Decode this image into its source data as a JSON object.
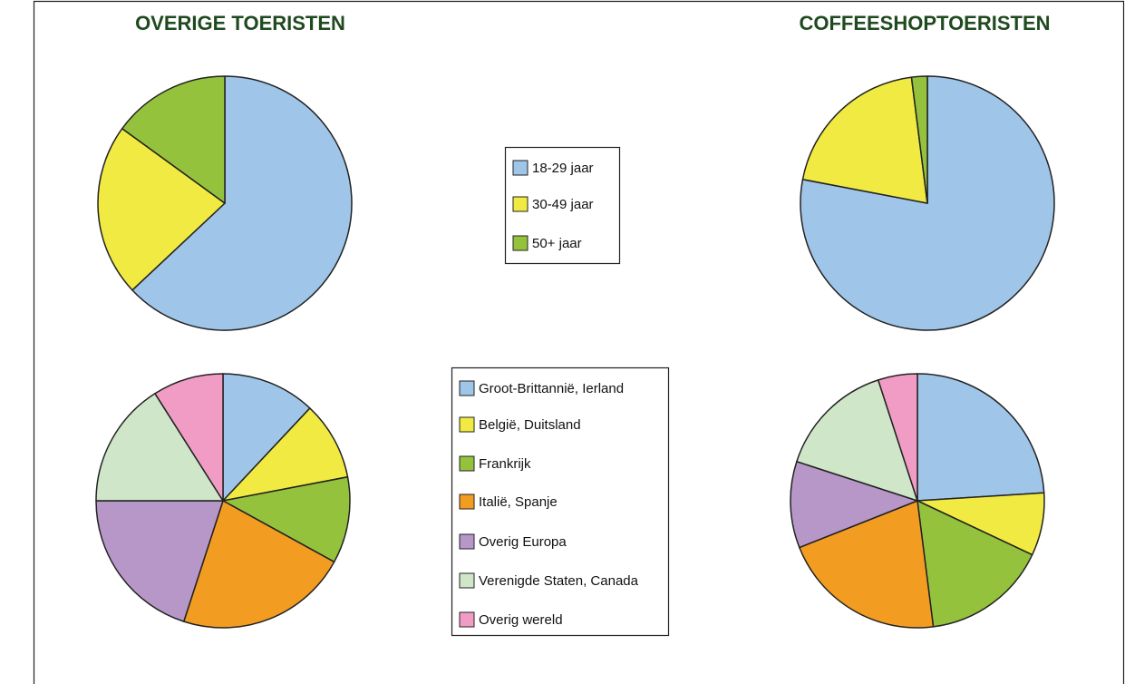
{
  "column_titles": [
    "OVERIGE TOERISTEN",
    "COFFEESHOPTOERISTEN"
  ],
  "chart_data": [
    {
      "type": "pie",
      "categories": [
        "18-29 jaar",
        "30-49 jaar",
        "50+ jaar"
      ],
      "colors": [
        "#9fc5e8",
        "#f0ea42",
        "#95c23d"
      ],
      "series": [
        {
          "values": [
            63,
            22,
            15
          ]
        },
        {
          "values": [
            78,
            20,
            2
          ]
        }
      ]
    },
    {
      "type": "pie",
      "categories": [
        "Groot-Brittannië, Ierland",
        "België, Duitsland",
        "Frankrijk",
        "Italië, Spanje",
        "Overig Europa",
        "Verenigde Staten, Canada",
        "Overig wereld"
      ],
      "colors": [
        "#9fc5e8",
        "#f0ea42",
        "#95c23d",
        "#f39c22",
        "#b797c8",
        "#cfe6c9",
        "#f19cc4"
      ],
      "series": [
        {
          "values": [
            12,
            10,
            11,
            22,
            20,
            16,
            9
          ]
        },
        {
          "values": [
            24,
            8,
            16,
            21,
            11,
            15,
            5
          ]
        }
      ]
    }
  ]
}
